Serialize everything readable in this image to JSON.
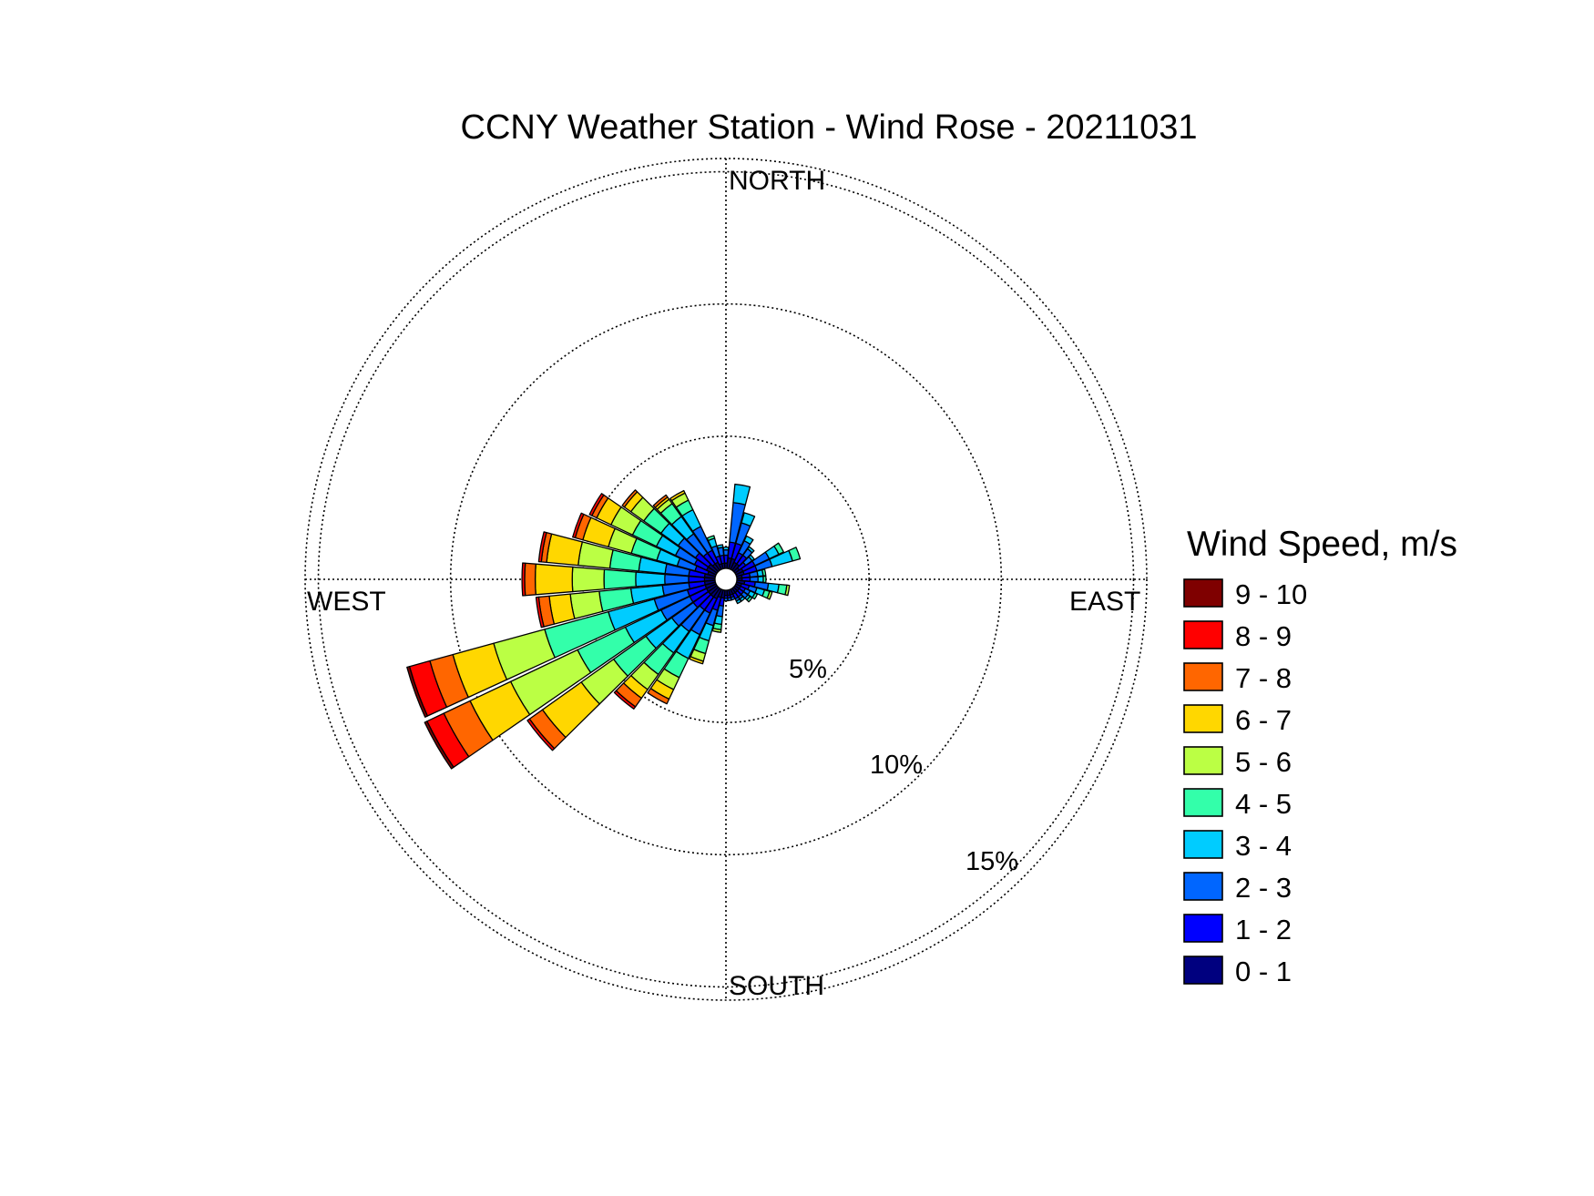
{
  "chart_data": {
    "type": "wind-rose",
    "title": "CCNY Weather Station - Wind Rose - 20211031",
    "directions": [
      "NORTH",
      "EAST",
      "SOUTH",
      "WEST"
    ],
    "rings": [
      "5%",
      "10%",
      "15%"
    ],
    "ring_values": [
      5,
      10,
      15
    ],
    "rmax": 15.5,
    "legend_title": "Wind Speed, m/s",
    "bins": [
      {
        "label": "0 - 1",
        "color": "#00007F"
      },
      {
        "label": "1 - 2",
        "color": "#0000FF"
      },
      {
        "label": "2 - 3",
        "color": "#0066FF"
      },
      {
        "label": "3 - 4",
        "color": "#00CCFF"
      },
      {
        "label": "4 - 5",
        "color": "#33FFAA"
      },
      {
        "label": "5 - 6",
        "color": "#BBFF44"
      },
      {
        "label": "6 - 7",
        "color": "#FFD700"
      },
      {
        "label": "7 - 8",
        "color": "#FF6600"
      },
      {
        "label": "8 - 9",
        "color": "#FF0000"
      },
      {
        "label": "9 - 10",
        "color": "#7F0000"
      }
    ],
    "sector_width_deg": 10,
    "sectors": [
      {
        "dir": 10,
        "values": [
          0.4,
          0.6,
          1.5,
          0.7,
          0,
          0,
          0,
          0,
          0,
          0
        ]
      },
      {
        "dir": 20,
        "values": [
          0.4,
          0.6,
          0.8,
          0.4,
          0,
          0,
          0,
          0,
          0,
          0
        ]
      },
      {
        "dir": 30,
        "values": [
          0.3,
          0.4,
          0.5,
          0.2,
          0,
          0,
          0,
          0,
          0,
          0
        ]
      },
      {
        "dir": 40,
        "values": [
          0.3,
          0.4,
          0.3,
          0.1,
          0,
          0,
          0,
          0,
          0,
          0
        ]
      },
      {
        "dir": 50,
        "values": [
          0.2,
          0.3,
          0.3,
          0.1,
          0,
          0,
          0,
          0,
          0,
          0
        ]
      },
      {
        "dir": 60,
        "values": [
          0.3,
          0.5,
          0.6,
          0.4,
          0.2,
          0,
          0,
          0,
          0,
          0
        ]
      },
      {
        "dir": 70,
        "values": [
          0.3,
          0.5,
          0.6,
          0.8,
          0.3,
          0,
          0,
          0,
          0,
          0
        ]
      },
      {
        "dir": 80,
        "values": [
          0.2,
          0.3,
          0.3,
          0.2,
          0.1,
          0,
          0,
          0,
          0,
          0
        ]
      },
      {
        "dir": 90,
        "values": [
          0.2,
          0.3,
          0.3,
          0.2,
          0.1,
          0,
          0,
          0,
          0,
          0
        ]
      },
      {
        "dir": 100,
        "values": [
          0.3,
          0.4,
          0.5,
          0.4,
          0.3,
          0.1,
          0,
          0,
          0,
          0
        ]
      },
      {
        "dir": 110,
        "values": [
          0.2,
          0.3,
          0.3,
          0.3,
          0.2,
          0.1,
          0,
          0,
          0,
          0
        ]
      },
      {
        "dir": 120,
        "values": [
          0.2,
          0.2,
          0.2,
          0.2,
          0.1,
          0,
          0,
          0,
          0,
          0
        ]
      },
      {
        "dir": 130,
        "values": [
          0.2,
          0.2,
          0.2,
          0.1,
          0.1,
          0,
          0,
          0,
          0,
          0
        ]
      },
      {
        "dir": 140,
        "values": [
          0.2,
          0.2,
          0.1,
          0.1,
          0,
          0,
          0,
          0,
          0,
          0
        ]
      },
      {
        "dir": 150,
        "values": [
          0.2,
          0.2,
          0.1,
          0.1,
          0,
          0,
          0,
          0,
          0,
          0
        ]
      },
      {
        "dir": 160,
        "values": [
          0.2,
          0.1,
          0.1,
          0,
          0,
          0,
          0,
          0,
          0,
          0
        ]
      },
      {
        "dir": 170,
        "values": [
          0.2,
          0.1,
          0.1,
          0,
          0,
          0,
          0,
          0,
          0,
          0
        ]
      },
      {
        "dir": 180,
        "values": [
          0.2,
          0.1,
          0.1,
          0,
          0,
          0,
          0,
          0,
          0,
          0
        ]
      },
      {
        "dir": 190,
        "values": [
          0.3,
          0.3,
          0.4,
          0.3,
          0.2,
          0.1,
          0,
          0,
          0,
          0
        ]
      },
      {
        "dir": 200,
        "values": [
          0.3,
          0.5,
          0.6,
          0.6,
          0.5,
          0.3,
          0.1,
          0,
          0,
          0
        ]
      },
      {
        "dir": 210,
        "values": [
          0.4,
          0.6,
          0.9,
          1.0,
          0.8,
          0.5,
          0.4,
          0.2,
          0,
          0
        ]
      },
      {
        "dir": 220,
        "values": [
          0.4,
          0.6,
          1.0,
          1.0,
          1.0,
          0.7,
          0.4,
          0.4,
          0.1,
          0
        ]
      },
      {
        "dir": 230,
        "values": [
          0.4,
          0.7,
          1.0,
          1.2,
          1.5,
          1.5,
          1.8,
          0.6,
          0.1,
          0
        ]
      },
      {
        "dir": 240,
        "values": [
          0.4,
          0.7,
          1.2,
          1.5,
          2.0,
          2.8,
          1.7,
          1.1,
          0.7,
          0.1
        ]
      },
      {
        "dir": 250,
        "values": [
          0.4,
          0.7,
          1.3,
          1.8,
          2.5,
          2.0,
          1.6,
          0.9,
          0.8,
          0.1
        ]
      },
      {
        "dir": 260,
        "values": [
          0.4,
          0.6,
          1.0,
          1.2,
          1.2,
          1.1,
          0.8,
          0.4,
          0.1,
          0
        ]
      },
      {
        "dir": 270,
        "values": [
          0.4,
          0.6,
          0.9,
          1.1,
          1.2,
          1.2,
          1.4,
          0.4,
          0.1,
          0
        ]
      },
      {
        "dir": 280,
        "values": [
          0.4,
          0.6,
          0.9,
          1.0,
          1.1,
          1.2,
          1.2,
          0.2,
          0.1,
          0
        ]
      },
      {
        "dir": 290,
        "values": [
          0.3,
          0.5,
          0.7,
          0.8,
          1.0,
          0.9,
          1.0,
          0.3,
          0.1,
          0
        ]
      },
      {
        "dir": 300,
        "values": [
          0.4,
          0.5,
          0.8,
          0.8,
          1.0,
          0.9,
          0.6,
          0.2,
          0.1,
          0
        ]
      },
      {
        "dir": 310,
        "values": [
          0.4,
          0.6,
          0.8,
          0.8,
          0.8,
          0.6,
          0.3,
          0.1,
          0,
          0
        ]
      },
      {
        "dir": 320,
        "values": [
          0.3,
          0.5,
          0.9,
          0.8,
          0.6,
          0.2,
          0.1,
          0.1,
          0,
          0
        ]
      },
      {
        "dir": 330,
        "values": [
          0.3,
          0.5,
          1.0,
          0.7,
          0.4,
          0.3,
          0.1,
          0,
          0,
          0
        ]
      },
      {
        "dir": 340,
        "values": [
          0.2,
          0.3,
          0.4,
          0.3,
          0.1,
          0,
          0,
          0,
          0,
          0
        ]
      },
      {
        "dir": 350,
        "values": [
          0.2,
          0.3,
          0.3,
          0.1,
          0,
          0,
          0,
          0,
          0,
          0
        ]
      },
      {
        "dir": 360,
        "values": [
          0.2,
          0.3,
          0.2,
          0.1,
          0,
          0,
          0,
          0,
          0,
          0
        ]
      }
    ]
  }
}
